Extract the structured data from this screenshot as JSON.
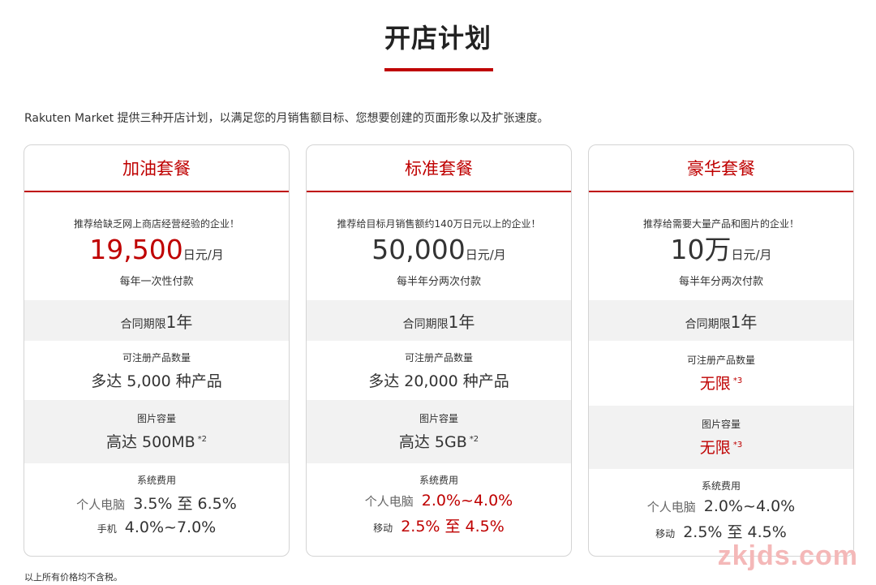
{
  "header": {
    "title": "开店计划"
  },
  "intro": "Rakuten Market 提供三种开店计划，以满足您的月销售额目标、您想要创建的页面形象以及扩张速度。",
  "plans": [
    {
      "name": "加油套餐",
      "recommend": "推荐给缺乏网上商店经营经验的企业！",
      "price": "19,500",
      "price_unit": "日元/月",
      "payment": "每年一次性付款",
      "contract_label": "合同期限",
      "contract_value": "1年",
      "products_label": "可注册产品数量",
      "products_value": "多达 5,000 种产品",
      "storage_label": "图片容量",
      "storage_value": "高达 500MB",
      "storage_note": "*2",
      "fee_label": "系统费用",
      "pc_label": "个人电脑",
      "pc_value": "3.5% 至 6.5%",
      "mobile_label": "手机",
      "mobile_value": "4.0%~7.0%"
    },
    {
      "name": "标准套餐",
      "recommend": "推荐给目标月销售额约140万日元以上的企业！",
      "price": "50,000",
      "price_unit": "日元/月",
      "payment": "每半年分两次付款",
      "contract_label": "合同期限",
      "contract_value": "1年",
      "products_label": "可注册产品数量",
      "products_value": "多达 20,000 种产品",
      "storage_label": "图片容量",
      "storage_value": "高达 5GB",
      "storage_note": "*2",
      "fee_label": "系统费用",
      "pc_label": "个人电脑",
      "pc_value": "2.0%~4.0%",
      "mobile_label": "移动",
      "mobile_value": "2.5% 至 4.5%"
    },
    {
      "name": "豪华套餐",
      "recommend": "推荐给需要大量产品和图片的企业！",
      "price": "10万",
      "price_unit": "日元/月",
      "payment": "每半年分两次付款",
      "contract_label": "合同期限",
      "contract_value": "1年",
      "products_label": "可注册产品数量",
      "products_value": "无限",
      "products_note": "*3",
      "storage_label": "图片容量",
      "storage_value": "无限",
      "storage_note": "*3",
      "fee_label": "系统费用",
      "pc_label": "个人电脑",
      "pc_value": "2.0%~4.0%",
      "mobile_label": "移动",
      "mobile_value": "2.5% 至 4.5%"
    }
  ],
  "colors": {
    "accent": "#bf0000",
    "section_gray": "#f2f2f2",
    "border": "#d4d4d4"
  },
  "footer_note": "以上所有价格均不含税。",
  "watermark": "zkjds.com"
}
